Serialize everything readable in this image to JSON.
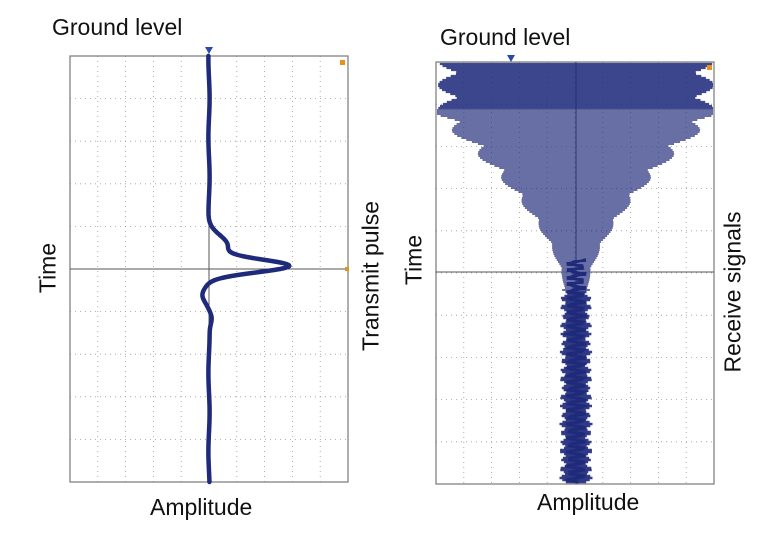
{
  "left_panel": {
    "top_label": "Ground level",
    "x_label": "Amplitude",
    "y_label": "Time",
    "side_label": "Transmit pulse"
  },
  "right_panel": {
    "top_label": "Ground level",
    "x_label": "Amplitude",
    "y_label": "Time",
    "side_label": "Receive signals"
  },
  "colors": {
    "trace": "#1f2a7a",
    "grid": "#9a9a9a",
    "frame": "#777777",
    "marker_ground": "#2b4aa8",
    "marker_orange": "#e8901c"
  }
}
